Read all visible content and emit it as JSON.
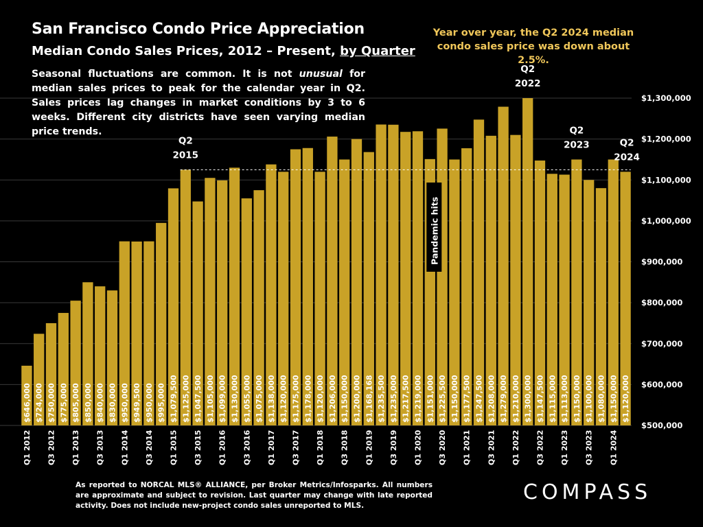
{
  "header": {
    "title": "San Francisco Condo Price Appreciation",
    "subtitle_main": "Median Condo Sales Prices, 2012 – Present,",
    "subtitle_link": "by Quarter",
    "yoy_note": "Year over year, the Q2 2024 median condo sales price was down about 2.5%.",
    "desc_part1": "Seasonal fluctuations are common. It is not",
    "desc_emph": "unusual",
    "desc_part2": "for median sales prices to peak for the calendar year in Q2. Sales prices lag changes in market conditions by 3 to 6 weeks. Different city districts have seen varying median price trends."
  },
  "footer": {
    "note": "As reported to NORCAL MLS® ALLIANCE, per Broker Metrics/Infosparks. All numbers are approximate and subject to revision. Last quarter may change with late reported activity. Does not include new-project condo sales unreported to MLS.",
    "logo": "COMPASS"
  },
  "colors": {
    "bar": "#c9a227",
    "accent_text": "#f0c75a",
    "background": "#000000",
    "text": "#ffffff"
  },
  "chart_data": {
    "type": "bar",
    "title": "San Francisco Condo Price Appreciation",
    "categories": [
      "Q1 2012",
      "Q2 2012",
      "Q3 2012",
      "Q4 2012",
      "Q1 2013",
      "Q2 2013",
      "Q3 2013",
      "Q4 2013",
      "Q1 2014",
      "Q2 2014",
      "Q3 2014",
      "Q4 2014",
      "Q1 2015",
      "Q2 2015",
      "Q3 2015",
      "Q4 2015",
      "Q1 2016",
      "Q2 2016",
      "Q3 2016",
      "Q4 2016",
      "Q1 2017",
      "Q2 2017",
      "Q3 2017",
      "Q4 2017",
      "Q1 2018",
      "Q2 2018",
      "Q3 2018",
      "Q4 2018",
      "Q1 2019",
      "Q2 2019",
      "Q3 2019",
      "Q4 2019",
      "Q1 2020",
      "Q2 2020",
      "Q3 2020",
      "Q4 2020",
      "Q1 2021",
      "Q2 2021",
      "Q3 2021",
      "Q4 2021",
      "Q1 2022",
      "Q2 2022",
      "Q3 2022",
      "Q4 2022",
      "Q1 2023",
      "Q2 2023",
      "Q3 2023",
      "Q4 2023",
      "Q1 2024",
      "Q2 2024"
    ],
    "values": [
      646000,
      724000,
      750000,
      775000,
      805000,
      850000,
      840000,
      830000,
      950000,
      949500,
      950000,
      995000,
      1079500,
      1125000,
      1047500,
      1105000,
      1099000,
      1130000,
      1055000,
      1075000,
      1138000,
      1120000,
      1175000,
      1178000,
      1120000,
      1206000,
      1150000,
      1200000,
      1168168,
      1235500,
      1235000,
      1217500,
      1219000,
      1151000,
      1225500,
      1150000,
      1177500,
      1247500,
      1208000,
      1279000,
      1210000,
      1300000,
      1147500,
      1115000,
      1113000,
      1150000,
      1100000,
      1080000,
      1150000,
      1120000
    ],
    "value_labels": [
      "$646,000",
      "$724,000",
      "$750,000",
      "$775,000",
      "$805,000",
      "$850,000",
      "$840,000",
      "$830,000",
      "$950,000",
      "$949,500",
      "$950,000",
      "$995,000",
      "$1,079,500",
      "$1,125,000",
      "$1,047,500",
      "$1,105,000",
      "$1,099,000",
      "$1,130,000",
      "$1,055,000",
      "$1,075,000",
      "$1,138,000",
      "$1,120,000",
      "$1,175,000",
      "$1,178,000",
      "$1,120,000",
      "$1,206,000",
      "$1,150,000",
      "$1,200,000",
      "$1,168,168",
      "$1,235,500",
      "$1,235,000",
      "$1,217,500",
      "$1,219,000",
      "$1,151,000",
      "$1,225,500",
      "$1,150,000",
      "$1,177,500",
      "$1,247,500",
      "$1,208,000",
      "$1,279,000",
      "$1,210,000",
      "$1,300,000",
      "$1,147,500",
      "$1,115,000",
      "$1,113,000",
      "$1,150,000",
      "$1,100,000",
      "$1,080,000",
      "$1,150,000",
      "$1,120,000"
    ],
    "x_tick_labels": [
      "Q1 2012",
      "Q3 2012",
      "Q1 2013",
      "Q3 2013",
      "Q1 2014",
      "Q3 2014",
      "Q1 2015",
      "Q3 2015",
      "Q1 2016",
      "Q3 2016",
      "Q1 2017",
      "Q3 2017",
      "Q1 2018",
      "Q3 2018",
      "Q1 2019",
      "Q3 2019",
      "Q1 2020",
      "Q3 2020",
      "Q1 2021",
      "Q3 2021",
      "Q1 2022",
      "Q3 2022",
      "Q1 2023",
      "Q3 2023",
      "Q1 2024"
    ],
    "y_ticks": [
      500000,
      600000,
      700000,
      800000,
      900000,
      1000000,
      1100000,
      1200000,
      1300000
    ],
    "y_tick_labels": [
      "$500,000",
      "$600,000",
      "$700,000",
      "$800,000",
      "$900,000",
      "$1,000,000",
      "$1,100,000",
      "$1,200,000",
      "$1,300,000"
    ],
    "ylim": [
      500000,
      1300000
    ],
    "grid": true,
    "reference_line": {
      "value": 1125000,
      "from": "Q2 2015",
      "to": "Q2 2024",
      "style": "dashed"
    },
    "annotations": [
      {
        "category": "Q2 2015",
        "lines": [
          "Q2",
          "2015"
        ]
      },
      {
        "category": "Q2 2022",
        "lines": [
          "Q2",
          "2022"
        ]
      },
      {
        "category": "Q2 2023",
        "lines": [
          "Q2",
          "2023"
        ]
      },
      {
        "category": "Q2 2024",
        "lines": [
          "Q2",
          "2024"
        ]
      }
    ],
    "event_label": {
      "category": "Q2 2020",
      "text": "Pandemic hits"
    }
  }
}
